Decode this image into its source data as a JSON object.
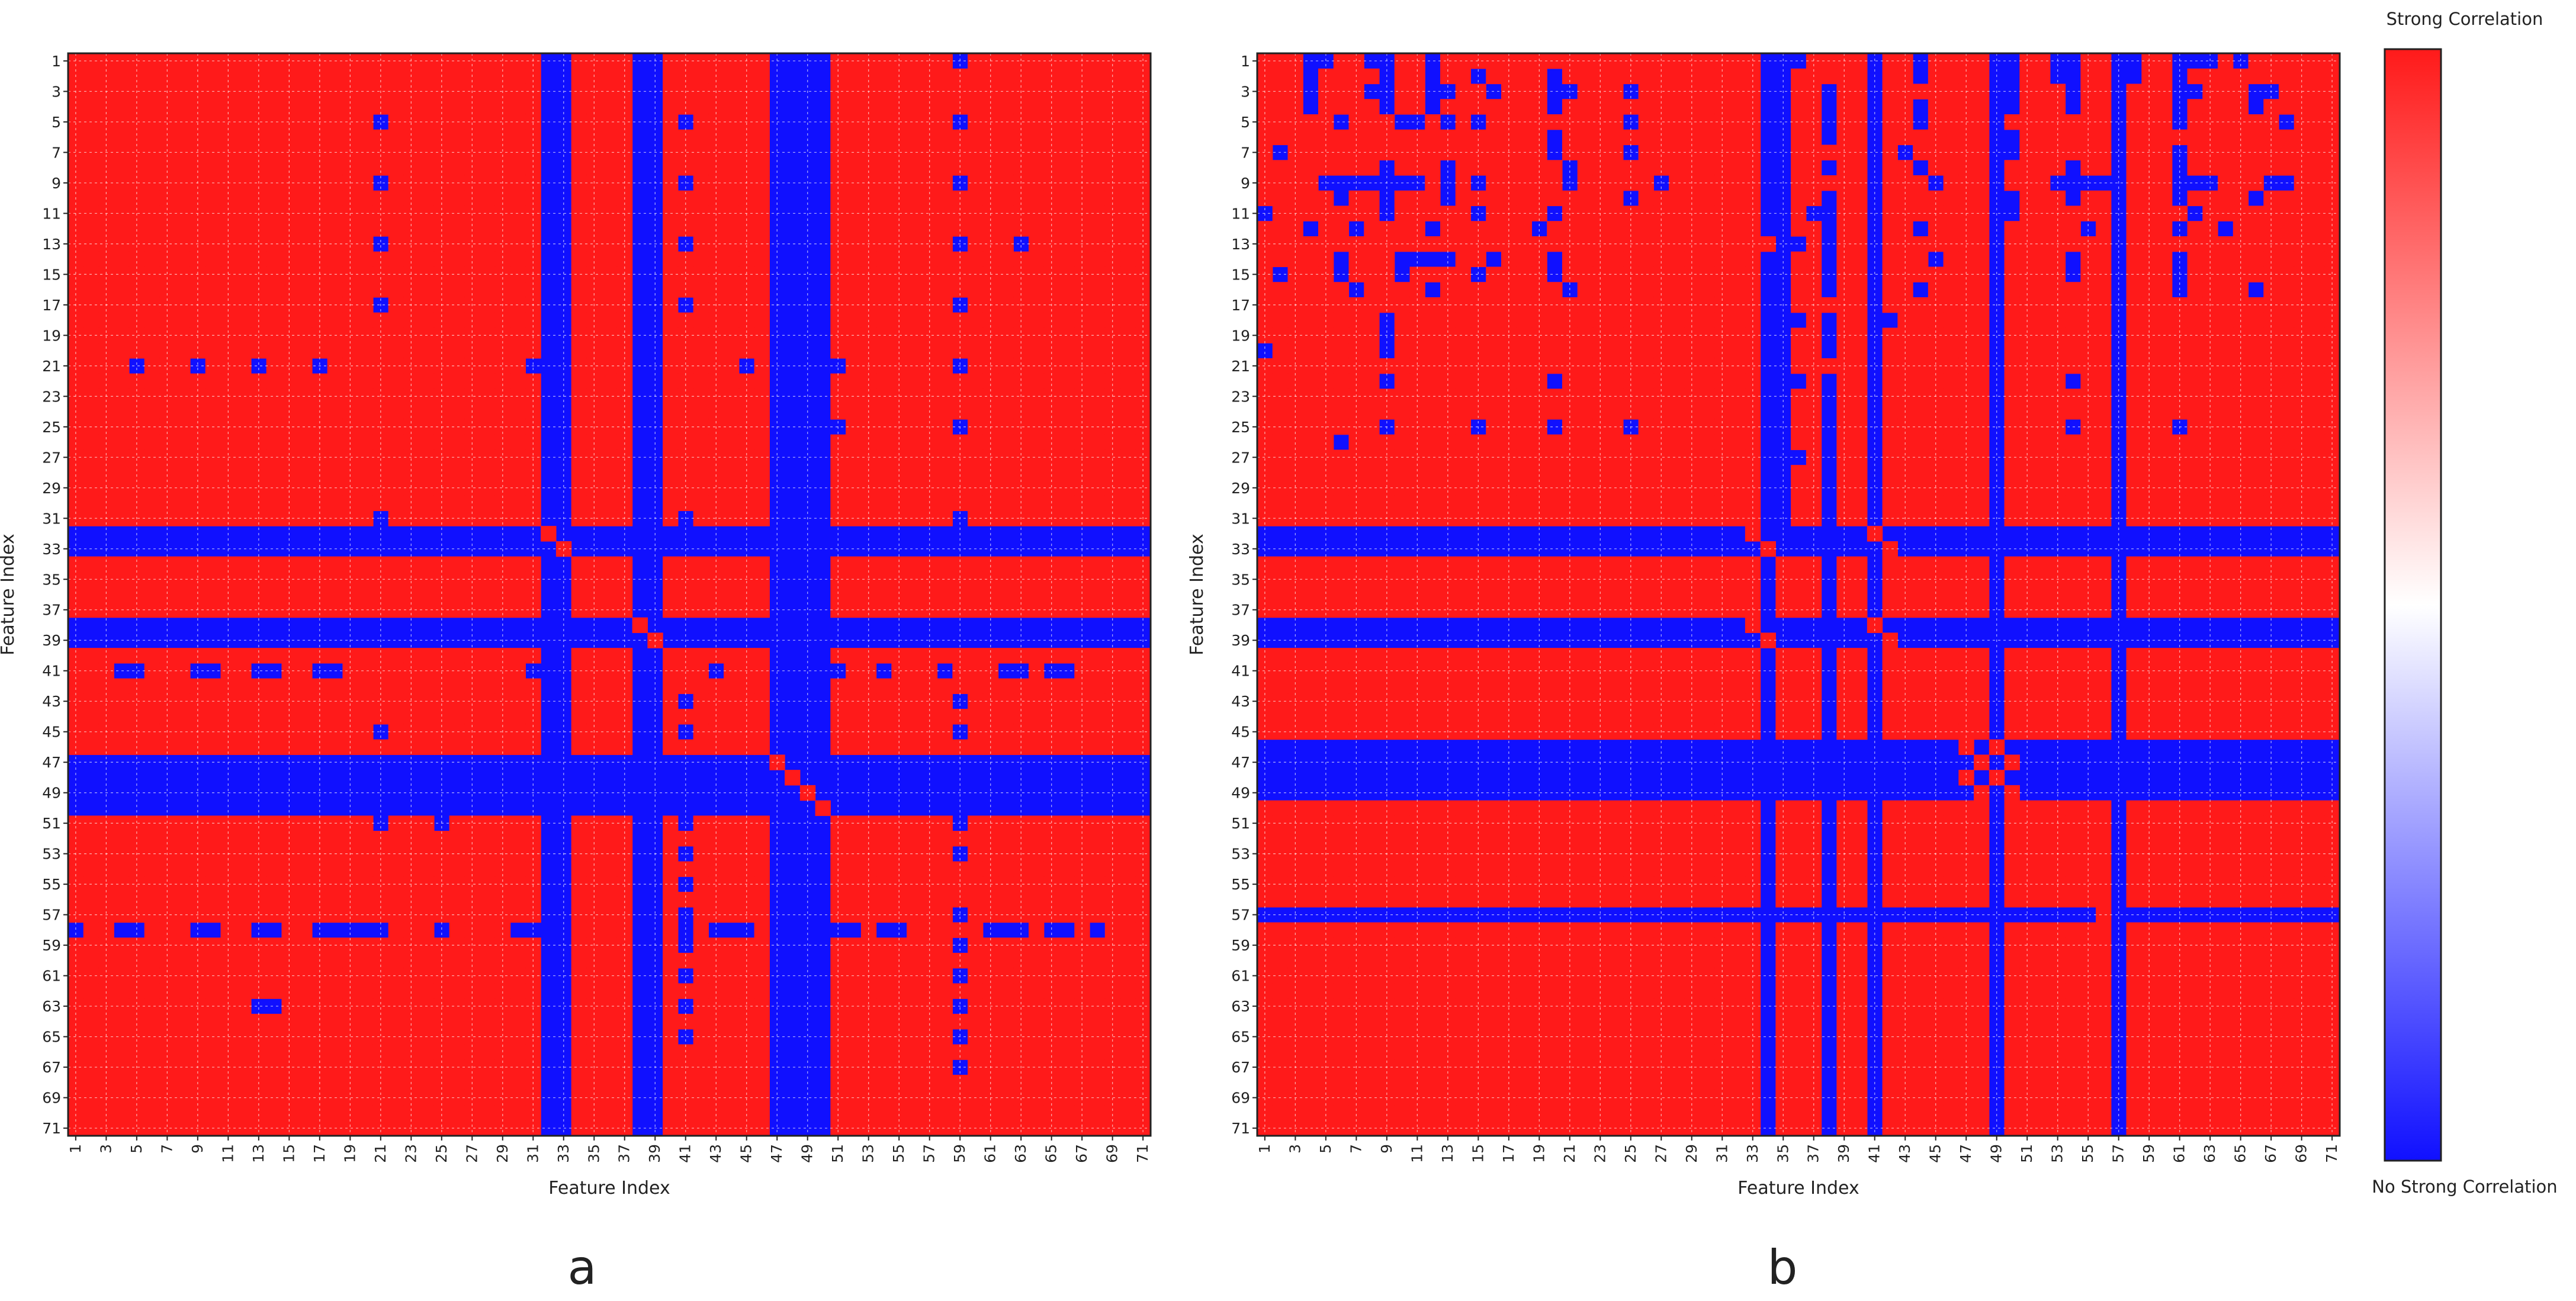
{
  "figure": {
    "panel_labels": [
      "a",
      "b"
    ]
  },
  "colors": {
    "strong": "#ff1a1a",
    "none": "#1010ff",
    "mid": "#ffffff",
    "grid": "#ffffff",
    "frame": "#222222",
    "text": "#222222"
  },
  "colorbar": {
    "top_label": "Strong Correlation",
    "bottom_label": "No Strong Correlation",
    "range": [
      0,
      1
    ]
  },
  "chart_data": [
    {
      "type": "heatmap",
      "panel": "a",
      "xlabel": "Feature Index",
      "ylabel": "Feature Index",
      "n_features": 71,
      "x_ticks": [
        1,
        3,
        5,
        7,
        9,
        11,
        13,
        15,
        17,
        19,
        21,
        23,
        25,
        27,
        29,
        31,
        33,
        35,
        37,
        39,
        41,
        43,
        45,
        47,
        49,
        51,
        53,
        55,
        57,
        59,
        61,
        63,
        65,
        67,
        69,
        71
      ],
      "y_ticks": [
        1,
        3,
        5,
        7,
        9,
        11,
        13,
        15,
        17,
        19,
        21,
        23,
        25,
        27,
        29,
        31,
        33,
        35,
        37,
        39,
        41,
        43,
        45,
        47,
        49,
        51,
        53,
        55,
        57,
        59,
        61,
        63,
        65,
        67,
        69,
        71
      ],
      "value_meaning": "1 = Strong Correlation, 0 = No Strong Correlation",
      "weak_features": [
        32,
        33,
        38,
        39,
        47,
        48,
        49,
        50
      ],
      "weak_pairs": [
        [
          1,
          59
        ],
        [
          5,
          21
        ],
        [
          5,
          41
        ],
        [
          5,
          59
        ],
        [
          9,
          21
        ],
        [
          9,
          41
        ],
        [
          9,
          59
        ],
        [
          13,
          21
        ],
        [
          13,
          41
        ],
        [
          13,
          59
        ],
        [
          13,
          63
        ],
        [
          17,
          21
        ],
        [
          17,
          41
        ],
        [
          17,
          59
        ],
        [
          21,
          5
        ],
        [
          21,
          9
        ],
        [
          21,
          13
        ],
        [
          21,
          17
        ],
        [
          21,
          31
        ],
        [
          21,
          45
        ],
        [
          21,
          51
        ],
        [
          21,
          59
        ],
        [
          25,
          51
        ],
        [
          25,
          59
        ],
        [
          31,
          21
        ],
        [
          31,
          41
        ],
        [
          31,
          59
        ],
        [
          41,
          4
        ],
        [
          41,
          5
        ],
        [
          41,
          9
        ],
        [
          41,
          10
        ],
        [
          41,
          13
        ],
        [
          41,
          14
        ],
        [
          41,
          17
        ],
        [
          41,
          18
        ],
        [
          41,
          31
        ],
        [
          41,
          43
        ],
        [
          41,
          51
        ],
        [
          41,
          54
        ],
        [
          41,
          58
        ],
        [
          41,
          62
        ],
        [
          41,
          63
        ],
        [
          41,
          65
        ],
        [
          41,
          66
        ],
        [
          43,
          41
        ],
        [
          43,
          59
        ],
        [
          45,
          21
        ],
        [
          45,
          41
        ],
        [
          45,
          59
        ],
        [
          51,
          21
        ],
        [
          51,
          25
        ],
        [
          51,
          41
        ],
        [
          51,
          59
        ],
        [
          53,
          41
        ],
        [
          53,
          59
        ],
        [
          55,
          41
        ],
        [
          57,
          41
        ],
        [
          57,
          59
        ],
        [
          58,
          1
        ],
        [
          58,
          4
        ],
        [
          58,
          5
        ],
        [
          58,
          9
        ],
        [
          58,
          10
        ],
        [
          58,
          13
        ],
        [
          58,
          14
        ],
        [
          58,
          17
        ],
        [
          58,
          18
        ],
        [
          58,
          19
        ],
        [
          58,
          20
        ],
        [
          58,
          21
        ],
        [
          58,
          25
        ],
        [
          58,
          30
        ],
        [
          58,
          31
        ],
        [
          58,
          41
        ],
        [
          58,
          43
        ],
        [
          58,
          44
        ],
        [
          58,
          45
        ],
        [
          58,
          51
        ],
        [
          58,
          52
        ],
        [
          58,
          54
        ],
        [
          58,
          55
        ],
        [
          58,
          61
        ],
        [
          58,
          62
        ],
        [
          58,
          63
        ],
        [
          58,
          65
        ],
        [
          58,
          66
        ],
        [
          58,
          68
        ],
        [
          59,
          41
        ],
        [
          59,
          59
        ],
        [
          61,
          41
        ],
        [
          61,
          59
        ],
        [
          63,
          13
        ],
        [
          63,
          14
        ],
        [
          63,
          41
        ],
        [
          63,
          59
        ],
        [
          65,
          41
        ],
        [
          65,
          59
        ],
        [
          67,
          59
        ]
      ]
    },
    {
      "type": "heatmap",
      "panel": "b",
      "xlabel": "Feature Index",
      "ylabel": "Feature Index",
      "n_features": 71,
      "x_ticks": [
        1,
        3,
        5,
        7,
        9,
        11,
        13,
        15,
        17,
        19,
        21,
        23,
        25,
        27,
        29,
        31,
        33,
        35,
        37,
        39,
        41,
        43,
        45,
        47,
        49,
        51,
        53,
        55,
        57,
        59,
        61,
        63,
        65,
        67,
        69,
        71
      ],
      "y_ticks": [
        1,
        3,
        5,
        7,
        9,
        11,
        13,
        15,
        17,
        19,
        21,
        23,
        25,
        27,
        29,
        31,
        33,
        35,
        37,
        39,
        41,
        43,
        45,
        47,
        49,
        51,
        53,
        55,
        57,
        59,
        61,
        63,
        65,
        67,
        69,
        71
      ],
      "value_meaning": "1 = Strong Correlation, 0 = No Strong Correlation",
      "rows": [
        "11100110011011111111111111111111100011110110111100110011001100010111111",
        "11101111011011011110111111111111100111110110111100110011001101111111111",
        "11101110011001101110011101111111100110110111111100111011011100111001111",
        "11101111011011111110111111111111100110110110111100111011011101111011111",
        "11111011100101011111111101111111100110110110111101111111011101111110111",
        "11111111111111111110111111111111100110110111111100111111011111111111111",
        "10111111111111111110111101111111100111110101111100111111011101111111111",
        "11111111011101111111011111111111100110110110111101111011011101111111111",
        "11110000000101011111011111011111100111110111011101110000011100011100111",
        "11111011011101111111111101111111100110110111111100111011011101111011111",
        "01111111011111011110111111111111100100110111111100111111011110111111111",
        "11101101111011111101111111111111100110110110111101111101011101101111111",
        "11111111111111111111111111111111110010110111111101111111011111111111111",
        "11111011100001101110111111111111100110110111011101111011011101111111111",
        "10111011101111011110111111111111100110110111111101111011011101111111111",
        "11111101111011111111011111111111100110110110111101111111011101111011111",
        "11111111111111111111111111111111100111110111111101111111011111111111111",
        "11111111011111111111111111111111100010110011111101111111011111111111111",
        "11111111011111111111111111111111100110110111111101111111011111111111111",
        "01111111011111111111111111111111100110110111111101111111011111111111111",
        "11111111111111111111111111111111100111110111111101111111011111111111111",
        "11111111011111111110111111111111100010110111111101111011011111111111111",
        "11111111111111111111111111111111100110110111111101111111011111111111111",
        "11111111111111111111111111111111100110110111111101111111011111111111111",
        "11111111011111011110111101111111100110110111111101111011011101111111111",
        "11111011111111111111111111111111100110110111111101111111011111111111111",
        "11111111111111111111111111111111100010110111111101111111011111111111111",
        "11111111111111111111111111111111100110110111111101111111011111111111111",
        "11111111111111111111111111111111100110110111111101111111011111111111111",
        "11111111111111111111111111111111100110110111111101111111011111111111111",
        "11111111111111111111111111111111100110110111111101111111011111111111111",
        "00000000000000000000000000000000100000001000000000000000000000000000000",
        "00000000000000000000000000000000010000000100000000000000000000000000000",
        "11111111111111111111111111111111101110110111111101111111011111111111111",
        "11111111111111111111111111111111101110110111111101111111011111111111111",
        "11111111111111111111111111111111101110110111111101111111011111111111111",
        "11111111111111111111111111111111101110110111111101111111011111111111111",
        "00000000000000000000000000000000100000001000000000000000000000000000000",
        "00000000000000000000000000000000010000000100000000000000000000000000000",
        "11111111111111111111111111111111101110110111111101111111011111111111111",
        "11111111111111111111111111111111101110110111111101111111011111111111111",
        "11111111111111111111111111111111101110110111111101111111011111111111111",
        "11111111111111111111111111111111101110110111111101111111011111111111111",
        "11111111111111111111111111111111101110110111111101111111011111111111111",
        "11111111111111111111111111111111101110110111111101111111011111111111111",
        "00000000000000000000000000000000000000000000001010000000000000000000000",
        "00000000000000000000000000000000000000000000000101000000000000000000000",
        "00000000000000000000000000000000000000000000001010000000000000000000000",
        "00000000000000000000000000000000000000000000000101000000000000000000000",
        "11111111111111111111111111111111101110110111111101111111011111111111111",
        "11111111111111111111111111111111101110110111111101111111011111111111111",
        "11111111111111111111111111111111101110110111111101111111011111111111111",
        "11111111111111111111111111111111101110110111111101111111011111111111111",
        "11111111111111111111111111111111101110110111111101111111011111111111111",
        "11111111111111111111111111111111101110110111111101111111011111111111111",
        "11111111111111111111111111111111101110110111111101111111011111111111111",
        "00000000000000000000000000000000000000000000000000000001000000000000000",
        "11111111111111111111111111111111101110110111111101111111011111111111111",
        "11111111111111111111111111111111101110110111111101111111011111111111111",
        "11111111111111111111111111111111101110110111111101111111011111111111111",
        "11111111111111111111111111111111101110110111111101111111011111111111111",
        "11111111111111111111111111111111101110110111111101111111011111111111111",
        "11111111111111111111111111111111101110110111111101111111011111111111111",
        "11111111111111111111111111111111101110110111111101111111011111111111111",
        "11111111111111111111111111111111101110110111111101111111011111111111111",
        "11111111111111111111111111111111101110110111111101111111011111111111111",
        "11111111111111111111111111111111101110110111111101111111011111111111111",
        "11111111111111111111111111111111101110110111111101111111011111111111111",
        "11111111111111111111111111111111101110110111111101111111011111111111111",
        "11111111111111111111111111111111101110110111111101111111011111111111111",
        "11111111111111111111111111111111101110110111111101111111011111111111111"
      ]
    }
  ]
}
